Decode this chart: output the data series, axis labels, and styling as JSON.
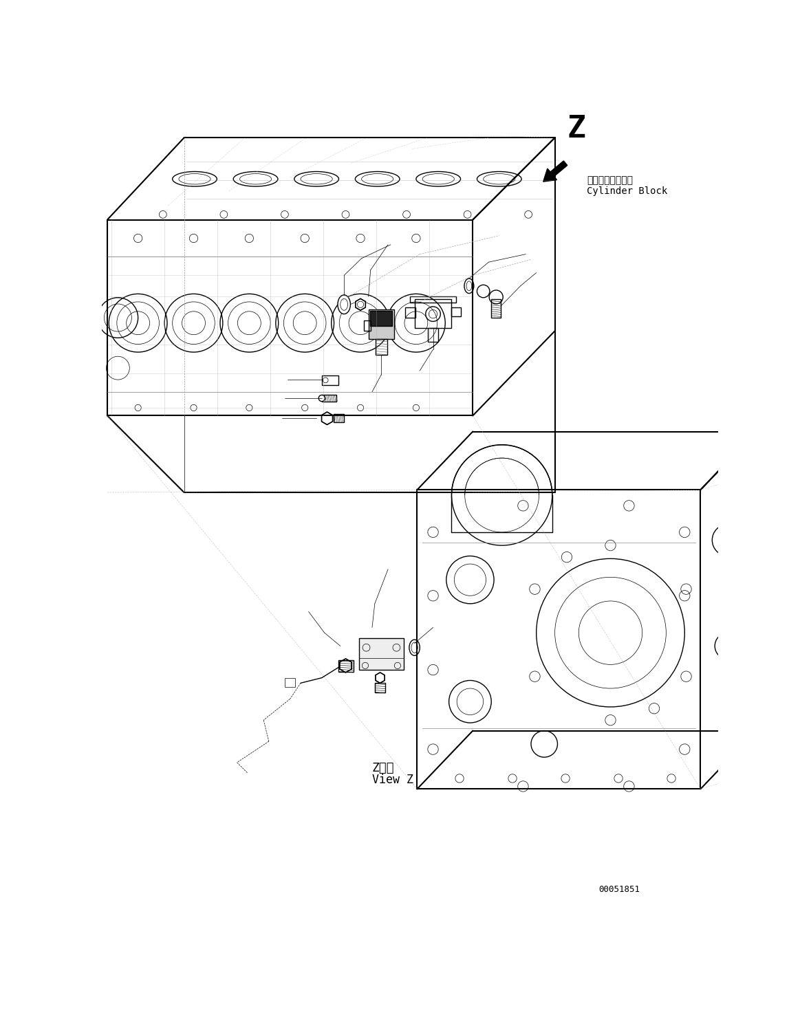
{
  "bg_color": "#ffffff",
  "fg_color": "#000000",
  "fig_width": 11.63,
  "fig_height": 14.76,
  "dpi": 100,
  "label_z": "Z",
  "cylinder_block_jp": "シリンダブロック",
  "cylinder_block_en": "Cylinder Block",
  "view_z_jp": "Z　視",
  "view_z_en": "View Z",
  "part_no": "00051851",
  "lw_thick": 1.5,
  "lw_main": 1.0,
  "lw_thin": 0.5
}
